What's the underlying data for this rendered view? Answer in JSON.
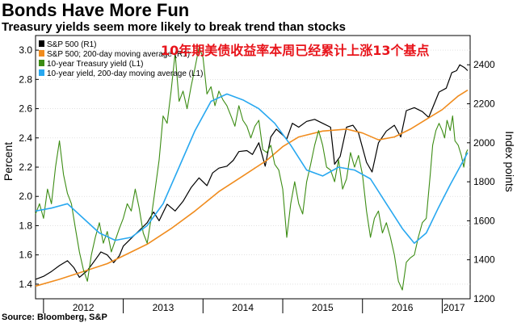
{
  "chart_data": {
    "type": "line",
    "title": "Bonds Have More Fun",
    "subtitle": "Treasury yields seem more likely to break trend than stocks",
    "annotation": "10年期美债收益率本周已经累计上涨13个基点",
    "annotation_color": "#e8141b",
    "source": "Source: Bloomberg, S&P",
    "ylabel_left": "Percent",
    "ylabel_right": "Index points",
    "ylim_left": [
      1.3,
      3.1
    ],
    "ylim_right": [
      1200,
      2550
    ],
    "yticks_left": [
      "1.4",
      "1.6",
      "1.8",
      "2.0",
      "2.2",
      "2.4",
      "2.6",
      "2.8",
      "3.0"
    ],
    "yticks_right": [
      "1200",
      "1400",
      "1600",
      "1800",
      "2000",
      "2200",
      "2400"
    ],
    "xlim": [
      2011.9,
      2017.35
    ],
    "xticks": [
      {
        "label": "2012",
        "pos": 2012.5
      },
      {
        "label": "2013",
        "pos": 2013.5
      },
      {
        "label": "2014",
        "pos": 2014.5
      },
      {
        "label": "2015",
        "pos": 2015.5
      },
      {
        "label": "2016",
        "pos": 2016.5
      },
      {
        "label": "2017",
        "pos": 2017.15
      }
    ],
    "grid": true,
    "legend_position": "top-left",
    "series": [
      {
        "name": "S&P 500 (R1)",
        "axis": "right",
        "color": "#000000",
        "width": 1.2,
        "points": [
          [
            2011.9,
            1300
          ],
          [
            2012.0,
            1315
          ],
          [
            2012.1,
            1340
          ],
          [
            2012.2,
            1370
          ],
          [
            2012.3,
            1395
          ],
          [
            2012.38,
            1360
          ],
          [
            2012.45,
            1310
          ],
          [
            2012.55,
            1345
          ],
          [
            2012.65,
            1400
          ],
          [
            2012.72,
            1440
          ],
          [
            2012.8,
            1425
          ],
          [
            2012.88,
            1385
          ],
          [
            2012.95,
            1420
          ],
          [
            2013.0,
            1470
          ],
          [
            2013.1,
            1510
          ],
          [
            2013.2,
            1550
          ],
          [
            2013.3,
            1590
          ],
          [
            2013.38,
            1645
          ],
          [
            2013.45,
            1600
          ],
          [
            2013.55,
            1685
          ],
          [
            2013.65,
            1650
          ],
          [
            2013.75,
            1700
          ],
          [
            2013.85,
            1770
          ],
          [
            2013.95,
            1820
          ],
          [
            2014.05,
            1780
          ],
          [
            2014.12,
            1845
          ],
          [
            2014.2,
            1870
          ],
          [
            2014.3,
            1880
          ],
          [
            2014.38,
            1910
          ],
          [
            2014.45,
            1955
          ],
          [
            2014.55,
            1960
          ],
          [
            2014.62,
            1940
          ],
          [
            2014.7,
            2000
          ],
          [
            2014.78,
            1880
          ],
          [
            2014.85,
            2030
          ],
          [
            2014.92,
            2070
          ],
          [
            2015.0,
            2040
          ],
          [
            2015.05,
            2020
          ],
          [
            2015.12,
            2100
          ],
          [
            2015.2,
            2080
          ],
          [
            2015.3,
            2110
          ],
          [
            2015.4,
            2120
          ],
          [
            2015.5,
            2100
          ],
          [
            2015.6,
            2080
          ],
          [
            2015.65,
            1890
          ],
          [
            2015.72,
            1930
          ],
          [
            2015.8,
            2080
          ],
          [
            2015.88,
            2090
          ],
          [
            2015.95,
            2050
          ],
          [
            2016.05,
            1900
          ],
          [
            2016.12,
            1850
          ],
          [
            2016.2,
            2000
          ],
          [
            2016.3,
            2060
          ],
          [
            2016.4,
            2090
          ],
          [
            2016.48,
            2030
          ],
          [
            2016.55,
            2165
          ],
          [
            2016.65,
            2180
          ],
          [
            2016.75,
            2160
          ],
          [
            2016.83,
            2130
          ],
          [
            2016.9,
            2200
          ],
          [
            2016.96,
            2260
          ],
          [
            2017.05,
            2280
          ],
          [
            2017.12,
            2360
          ],
          [
            2017.18,
            2370
          ],
          [
            2017.22,
            2400
          ],
          [
            2017.28,
            2385
          ],
          [
            2017.32,
            2370
          ]
        ]
      },
      {
        "name": "S&P 500; 200-day moving average (R1)",
        "axis": "right",
        "color": "#f08c1e",
        "width": 1.6,
        "points": [
          [
            2011.9,
            1265
          ],
          [
            2012.2,
            1300
          ],
          [
            2012.5,
            1340
          ],
          [
            2012.8,
            1380
          ],
          [
            2013.0,
            1420
          ],
          [
            2013.3,
            1480
          ],
          [
            2013.6,
            1560
          ],
          [
            2013.9,
            1650
          ],
          [
            2014.2,
            1750
          ],
          [
            2014.5,
            1830
          ],
          [
            2014.8,
            1910
          ],
          [
            2015.0,
            1980
          ],
          [
            2015.2,
            2030
          ],
          [
            2015.5,
            2060
          ],
          [
            2015.8,
            2070
          ],
          [
            2016.0,
            2050
          ],
          [
            2016.2,
            2015
          ],
          [
            2016.4,
            2030
          ],
          [
            2016.6,
            2070
          ],
          [
            2016.8,
            2120
          ],
          [
            2017.0,
            2170
          ],
          [
            2017.2,
            2240
          ],
          [
            2017.32,
            2270
          ]
        ]
      },
      {
        "name": "10-year Treasury yield (L1)",
        "axis": "left",
        "color": "#3c8c14",
        "width": 1.1,
        "points": [
          [
            2011.9,
            1.88
          ],
          [
            2011.95,
            1.95
          ],
          [
            2012.0,
            1.85
          ],
          [
            2012.05,
            2.05
          ],
          [
            2012.1,
            1.95
          ],
          [
            2012.15,
            2.2
          ],
          [
            2012.2,
            2.38
          ],
          [
            2012.25,
            2.15
          ],
          [
            2012.3,
            2.02
          ],
          [
            2012.35,
            1.95
          ],
          [
            2012.4,
            1.78
          ],
          [
            2012.45,
            1.62
          ],
          [
            2012.5,
            1.5
          ],
          [
            2012.55,
            1.42
          ],
          [
            2012.6,
            1.6
          ],
          [
            2012.65,
            1.72
          ],
          [
            2012.7,
            1.82
          ],
          [
            2012.75,
            1.68
          ],
          [
            2012.8,
            1.76
          ],
          [
            2012.85,
            1.62
          ],
          [
            2012.9,
            1.7
          ],
          [
            2012.95,
            1.78
          ],
          [
            2013.0,
            1.85
          ],
          [
            2013.05,
            1.95
          ],
          [
            2013.1,
            1.9
          ],
          [
            2013.15,
            2.05
          ],
          [
            2013.2,
            1.92
          ],
          [
            2013.25,
            1.75
          ],
          [
            2013.3,
            1.68
          ],
          [
            2013.35,
            1.85
          ],
          [
            2013.4,
            2.05
          ],
          [
            2013.45,
            2.25
          ],
          [
            2013.5,
            2.55
          ],
          [
            2013.55,
            2.5
          ],
          [
            2013.6,
            2.72
          ],
          [
            2013.65,
            2.98
          ],
          [
            2013.7,
            2.65
          ],
          [
            2013.75,
            2.72
          ],
          [
            2013.8,
            2.6
          ],
          [
            2013.85,
            2.75
          ],
          [
            2013.9,
            2.88
          ],
          [
            2013.95,
            3.02
          ],
          [
            2014.0,
            2.95
          ],
          [
            2014.05,
            2.7
          ],
          [
            2014.1,
            2.75
          ],
          [
            2014.15,
            2.62
          ],
          [
            2014.2,
            2.72
          ],
          [
            2014.25,
            2.66
          ],
          [
            2014.3,
            2.62
          ],
          [
            2014.35,
            2.55
          ],
          [
            2014.4,
            2.48
          ],
          [
            2014.45,
            2.62
          ],
          [
            2014.5,
            2.52
          ],
          [
            2014.55,
            2.48
          ],
          [
            2014.6,
            2.4
          ],
          [
            2014.65,
            2.48
          ],
          [
            2014.7,
            2.52
          ],
          [
            2014.75,
            2.32
          ],
          [
            2014.8,
            2.3
          ],
          [
            2014.85,
            2.35
          ],
          [
            2014.9,
            2.22
          ],
          [
            2014.95,
            2.18
          ],
          [
            2015.0,
            2.05
          ],
          [
            2015.05,
            1.72
          ],
          [
            2015.1,
            1.95
          ],
          [
            2015.15,
            2.1
          ],
          [
            2015.2,
            1.95
          ],
          [
            2015.25,
            1.88
          ],
          [
            2015.3,
            2.1
          ],
          [
            2015.35,
            2.22
          ],
          [
            2015.4,
            2.35
          ],
          [
            2015.45,
            2.45
          ],
          [
            2015.5,
            2.35
          ],
          [
            2015.55,
            2.2
          ],
          [
            2015.6,
            2.18
          ],
          [
            2015.65,
            2.1
          ],
          [
            2015.7,
            2.25
          ],
          [
            2015.75,
            2.05
          ],
          [
            2015.8,
            2.12
          ],
          [
            2015.85,
            2.3
          ],
          [
            2015.9,
            2.2
          ],
          [
            2015.95,
            2.28
          ],
          [
            2016.0,
            2.15
          ],
          [
            2016.05,
            1.9
          ],
          [
            2016.1,
            1.72
          ],
          [
            2016.15,
            1.85
          ],
          [
            2016.2,
            1.9
          ],
          [
            2016.25,
            1.75
          ],
          [
            2016.3,
            1.82
          ],
          [
            2016.35,
            1.72
          ],
          [
            2016.4,
            1.6
          ],
          [
            2016.45,
            1.42
          ],
          [
            2016.5,
            1.36
          ],
          [
            2016.55,
            1.55
          ],
          [
            2016.6,
            1.58
          ],
          [
            2016.65,
            1.6
          ],
          [
            2016.7,
            1.72
          ],
          [
            2016.75,
            1.82
          ],
          [
            2016.8,
            1.85
          ],
          [
            2016.85,
            2.15
          ],
          [
            2016.88,
            2.35
          ],
          [
            2016.92,
            2.45
          ],
          [
            2016.96,
            2.5
          ],
          [
            2017.0,
            2.45
          ],
          [
            2017.03,
            2.4
          ],
          [
            2017.06,
            2.52
          ],
          [
            2017.1,
            2.45
          ],
          [
            2017.13,
            2.55
          ],
          [
            2017.16,
            2.38
          ],
          [
            2017.2,
            2.35
          ],
          [
            2017.24,
            2.28
          ],
          [
            2017.27,
            2.2
          ],
          [
            2017.3,
            2.3
          ],
          [
            2017.32,
            2.32
          ]
        ]
      },
      {
        "name": "10-year yield, 200-day moving average (L1)",
        "axis": "left",
        "color": "#28a8f0",
        "width": 1.6,
        "points": [
          [
            2011.9,
            1.9
          ],
          [
            2012.1,
            1.92
          ],
          [
            2012.3,
            1.95
          ],
          [
            2012.5,
            1.85
          ],
          [
            2012.7,
            1.75
          ],
          [
            2012.9,
            1.7
          ],
          [
            2013.1,
            1.72
          ],
          [
            2013.3,
            1.8
          ],
          [
            2013.5,
            1.95
          ],
          [
            2013.7,
            2.2
          ],
          [
            2013.9,
            2.45
          ],
          [
            2014.1,
            2.65
          ],
          [
            2014.3,
            2.7
          ],
          [
            2014.5,
            2.66
          ],
          [
            2014.7,
            2.6
          ],
          [
            2014.9,
            2.5
          ],
          [
            2015.1,
            2.35
          ],
          [
            2015.3,
            2.18
          ],
          [
            2015.5,
            2.14
          ],
          [
            2015.7,
            2.2
          ],
          [
            2015.9,
            2.18
          ],
          [
            2016.1,
            2.12
          ],
          [
            2016.3,
            1.95
          ],
          [
            2016.5,
            1.78
          ],
          [
            2016.65,
            1.68
          ],
          [
            2016.8,
            1.75
          ],
          [
            2016.95,
            1.92
          ],
          [
            2017.1,
            2.08
          ],
          [
            2017.2,
            2.18
          ],
          [
            2017.32,
            2.3
          ]
        ]
      }
    ]
  }
}
